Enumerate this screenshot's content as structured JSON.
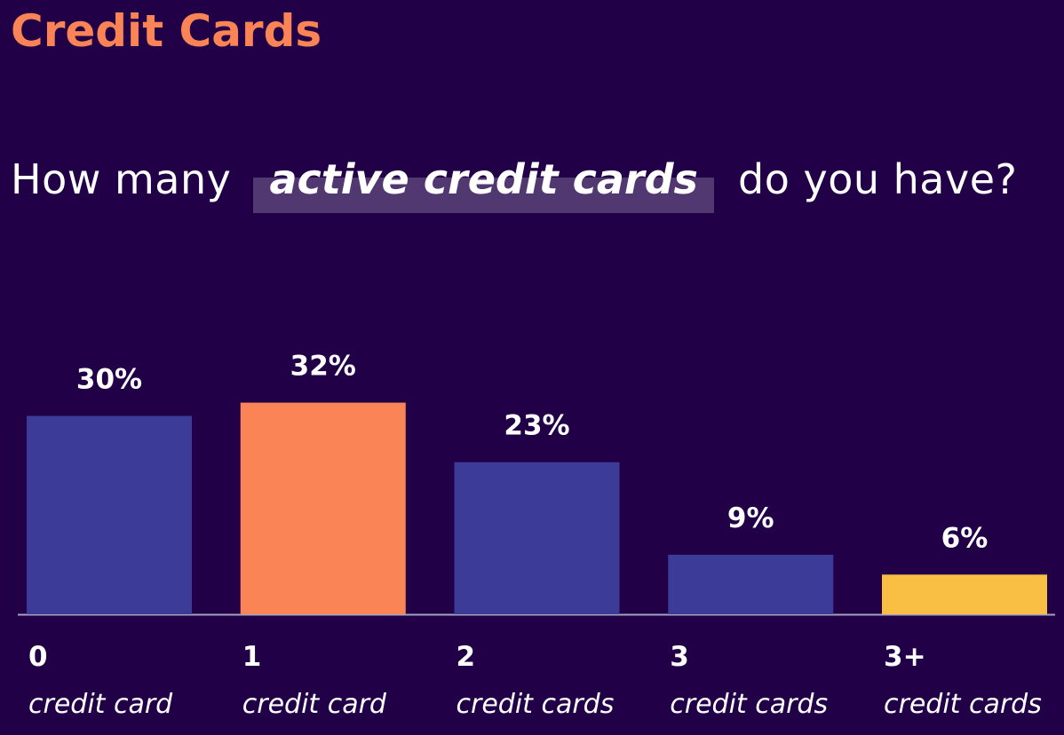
{
  "title": "Credit Cards",
  "question": {
    "before": "How many",
    "highlight": "active credit cards",
    "after": "do you have?"
  },
  "colors": {
    "background": "#220048",
    "title": "#fa8456",
    "bar_default": "#3c3b98",
    "bar_highlight_orange": "#fa8456",
    "bar_highlight_yellow": "#f9be44",
    "value_label": "#ffffff",
    "baseline": "#a7a2c0"
  },
  "chart_data": {
    "type": "bar",
    "categories": [
      "0",
      "1",
      "2",
      "3",
      "3+"
    ],
    "category_sublabels": [
      "credit card",
      "credit card",
      "credit cards",
      "credit cards",
      "credit cards"
    ],
    "values": [
      30,
      32,
      23,
      9,
      6
    ],
    "value_labels": [
      "30%",
      "32%",
      "23%",
      "9%",
      "6%"
    ],
    "bar_colors": [
      "#3c3b98",
      "#fa8456",
      "#3c3b98",
      "#3c3b98",
      "#f9be44"
    ],
    "unit": "%",
    "ylim": [
      0,
      35
    ],
    "grid": false,
    "legend": "none"
  }
}
